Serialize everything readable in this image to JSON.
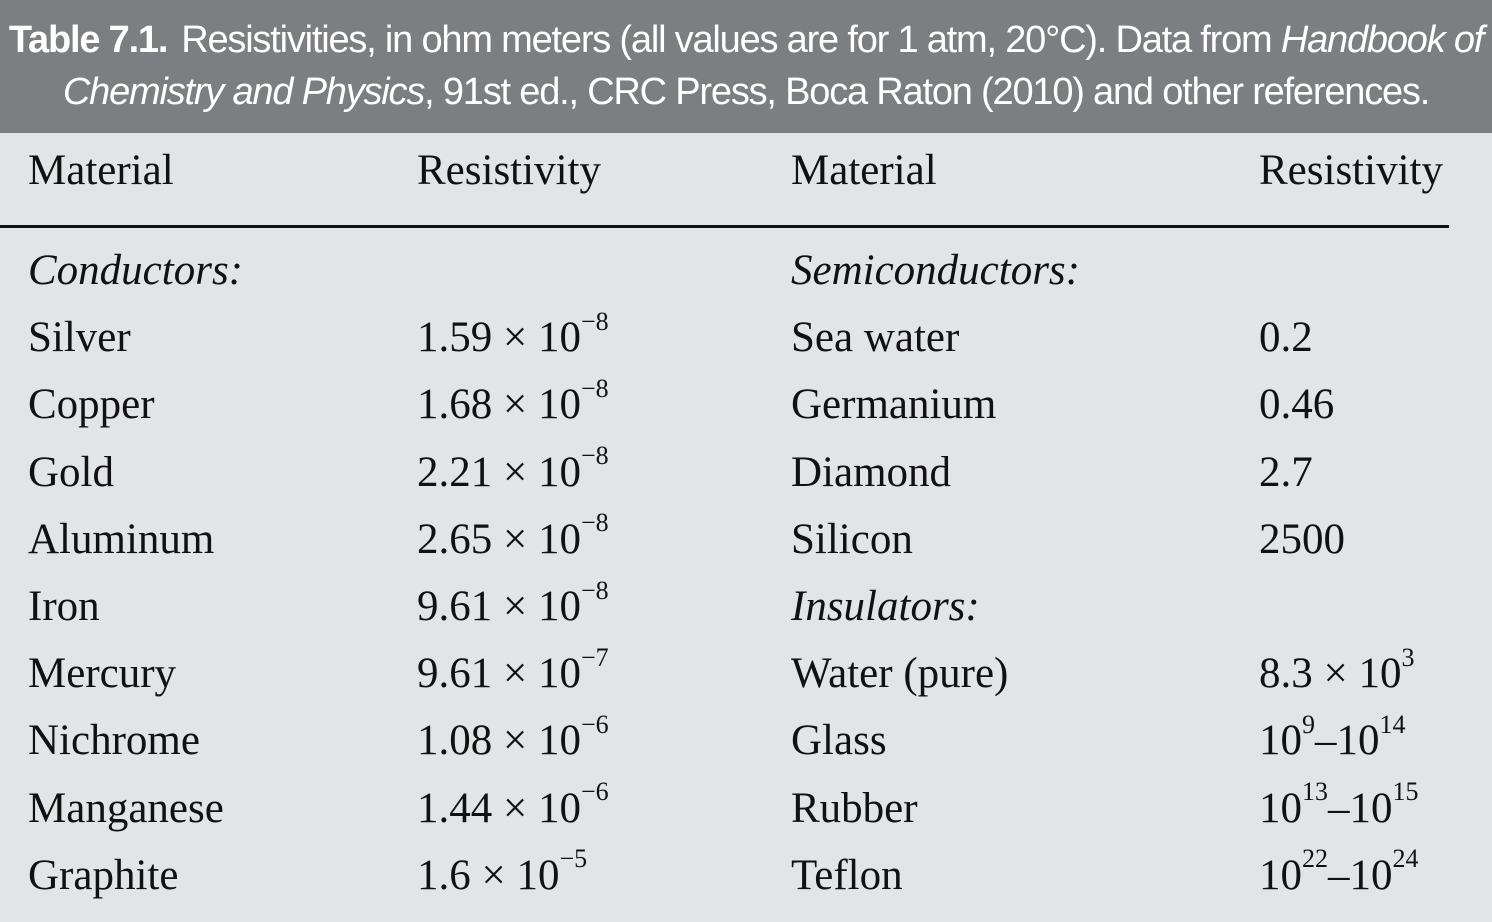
{
  "caption": {
    "label": "Table 7.1.",
    "text_before": "Resistivities, in ohm meters (all values are for 1 atm, 20°C). Data from ",
    "italic_1": "Handbook of",
    "italic_2": "Chemistry and Physics",
    "text_after": ", 91st ed., CRC Press, Boca Raton (2010) and other references."
  },
  "headers": {
    "material_left": "Material",
    "resistivity_left": "Resistivity",
    "material_right": "Material",
    "resistivity_right": "Resistivity"
  },
  "sections": {
    "conductors": "Conductors:",
    "semiconductors": "Semiconductors:",
    "insulators": "Insulators:"
  },
  "conductors": [
    {
      "material": "Silver",
      "mantissa": "1.59 × 10",
      "exp": "−8"
    },
    {
      "material": "Copper",
      "mantissa": "1.68 × 10",
      "exp": "−8"
    },
    {
      "material": "Gold",
      "mantissa": "2.21 × 10",
      "exp": "−8"
    },
    {
      "material": "Aluminum",
      "mantissa": "2.65 × 10",
      "exp": "−8"
    },
    {
      "material": "Iron",
      "mantissa": "9.61 × 10",
      "exp": "−8"
    },
    {
      "material": "Mercury",
      "mantissa": "9.61 × 10",
      "exp": "−7"
    },
    {
      "material": "Nichrome",
      "mantissa": "1.08 × 10",
      "exp": "−6"
    },
    {
      "material": "Manganese",
      "mantissa": "1.44 × 10",
      "exp": "−6"
    },
    {
      "material": "Graphite",
      "mantissa": "1.6 × 10",
      "exp": "−5"
    }
  ],
  "semiconductors": [
    {
      "material": "Sea water",
      "value": "0.2"
    },
    {
      "material": "Germanium",
      "value": "0.46"
    },
    {
      "material": "Diamond",
      "value": "2.7"
    },
    {
      "material": "Silicon",
      "value": "2500"
    }
  ],
  "insulators": [
    {
      "material": "Water (pure)",
      "base1": "8.3 × 10",
      "exp1": "3",
      "sep": "",
      "base2": "",
      "exp2": ""
    },
    {
      "material": "Glass",
      "base1": "10",
      "exp1": "9",
      "sep": "–",
      "base2": "10",
      "exp2": "14"
    },
    {
      "material": "Rubber",
      "base1": "10",
      "exp1": "13",
      "sep": "–",
      "base2": "10",
      "exp2": "15"
    },
    {
      "material": "Teflon",
      "base1": "10",
      "exp1": "22",
      "sep": "–",
      "base2": "10",
      "exp2": "24"
    }
  ]
}
